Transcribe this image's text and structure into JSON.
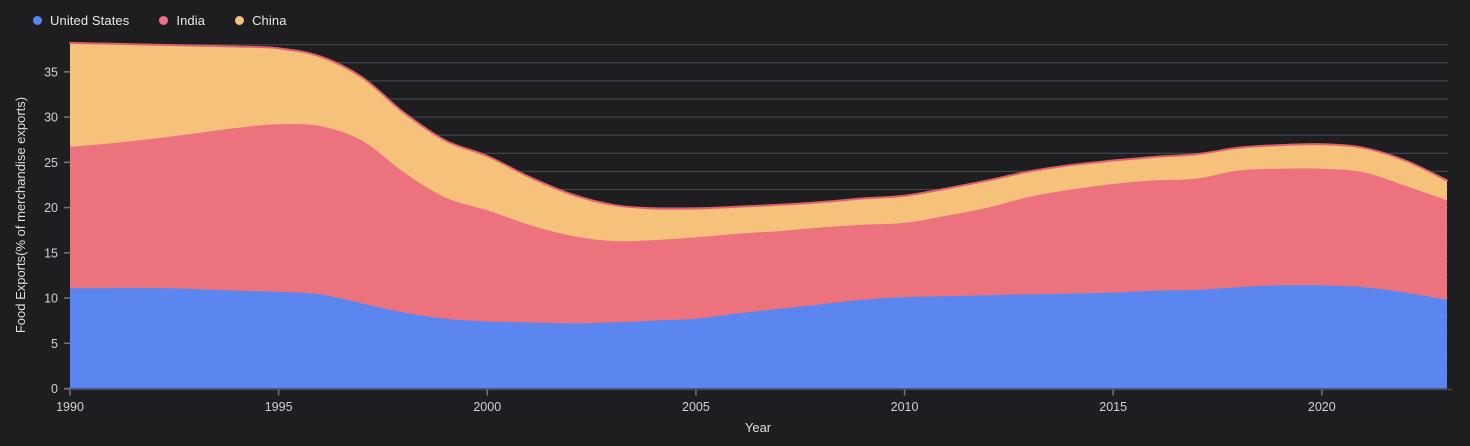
{
  "chart_data": {
    "type": "area",
    "stacked": true,
    "xlabel": "Year",
    "ylabel": "Food Exports(% of merchandise exports)",
    "x": [
      1990,
      1991,
      1992,
      1993,
      1994,
      1995,
      1996,
      1997,
      1998,
      1999,
      2000,
      2001,
      2002,
      2003,
      2004,
      2005,
      2006,
      2007,
      2008,
      2009,
      2010,
      2011,
      2012,
      2013,
      2014,
      2015,
      2016,
      2017,
      2018,
      2019,
      2020,
      2021,
      2022,
      2023
    ],
    "series": [
      {
        "name": "United States",
        "color": "#5b86ef",
        "values": [
          11.1,
          11.1,
          11.1,
          11.0,
          10.8,
          10.7,
          10.4,
          9.4,
          8.4,
          7.7,
          7.4,
          7.3,
          7.2,
          7.3,
          7.5,
          7.7,
          8.3,
          8.8,
          9.3,
          9.8,
          10.1,
          10.2,
          10.3,
          10.4,
          10.5,
          10.6,
          10.8,
          10.9,
          11.2,
          11.4,
          11.4,
          11.2,
          10.6,
          9.8
        ]
      },
      {
        "name": "India",
        "color": "#ec727e",
        "values": [
          15.6,
          16.0,
          16.5,
          17.2,
          18.0,
          18.5,
          18.6,
          18.0,
          15.5,
          13.4,
          12.3,
          10.8,
          9.7,
          9.0,
          8.9,
          9.0,
          8.8,
          8.6,
          8.5,
          8.3,
          8.2,
          8.9,
          9.7,
          10.8,
          11.5,
          12.0,
          12.2,
          12.3,
          12.9,
          12.9,
          12.9,
          12.7,
          11.8,
          11.0
        ]
      },
      {
        "name": "China",
        "color": "#f6c17b",
        "values": [
          11.5,
          11.0,
          10.4,
          9.7,
          9.0,
          8.4,
          7.7,
          7.0,
          6.6,
          6.3,
          6.0,
          5.3,
          4.6,
          4.0,
          3.5,
          3.2,
          3.0,
          2.9,
          2.8,
          2.9,
          3.0,
          3.0,
          3.0,
          2.8,
          2.7,
          2.6,
          2.6,
          2.7,
          2.5,
          2.6,
          2.7,
          2.7,
          2.8,
          2.2
        ]
      }
    ],
    "xlim": [
      1990,
      2023
    ],
    "ylim": [
      0,
      38.3
    ],
    "xticks": [
      1990,
      1995,
      2000,
      2005,
      2010,
      2015,
      2020
    ],
    "yticks": [
      0,
      5,
      10,
      15,
      20,
      25,
      30,
      35
    ],
    "grid": {
      "horizontal": true,
      "step": 2,
      "vertical": false
    },
    "legend_position": "top-left",
    "top_stroke_color": "#e0616e"
  },
  "theme": {
    "background": "#1e1e21",
    "gridline": "rgba(152,168,200,0.33)",
    "axis_line": "#45454d",
    "tick_mark": "#73737b",
    "tick_text": "#d0d0d6",
    "axis_title_text": "#dfdfe3",
    "legend_text": "#e9e9ec"
  }
}
